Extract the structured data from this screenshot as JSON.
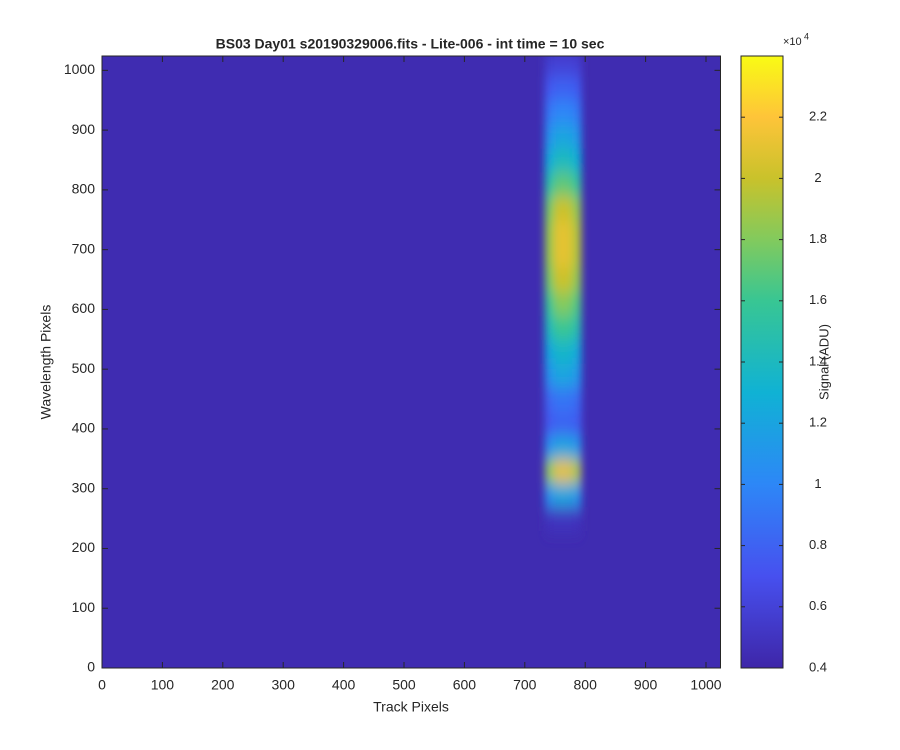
{
  "chart_data": {
    "type": "heatmap",
    "title": "BS03 Day01  s20190329006.fits - Lite-006 - int time = 10 sec",
    "xlabel": "Track Pixels",
    "ylabel": "Wavelength Pixels",
    "xlim": [
      0,
      1024
    ],
    "ylim": [
      0,
      1024
    ],
    "xticks": [
      0,
      100,
      200,
      300,
      400,
      500,
      600,
      700,
      800,
      900,
      1000
    ],
    "yticks": [
      0,
      100,
      200,
      300,
      400,
      500,
      600,
      700,
      800,
      900,
      1000
    ],
    "background": 4400,
    "x": [
      740.5,
      755.5,
      770.5,
      785.5
    ],
    "y": [
      250,
      290,
      330,
      370,
      410,
      450,
      490,
      530,
      570,
      610,
      650,
      690,
      730,
      770,
      810,
      850,
      890,
      930,
      970,
      1010
    ],
    "z": [
      [
        4910,
        5000,
        5000,
        4940
      ],
      [
        10860,
        12000,
        12000,
        11240
      ],
      [
        18510,
        21000,
        21000,
        19340
      ],
      [
        10860,
        12000,
        12000,
        11240
      ],
      [
        7460,
        8000,
        8000,
        7640
      ],
      [
        8310,
        9000,
        9000,
        8540
      ],
      [
        10860,
        12000,
        12000,
        11240
      ],
      [
        12135,
        13500,
        13500,
        12590
      ],
      [
        14260,
        16000,
        16000,
        14840
      ],
      [
        15960,
        18000,
        18000,
        16640
      ],
      [
        17660,
        20000,
        20000,
        18440
      ],
      [
        18510,
        21000,
        21000,
        19340
      ],
      [
        18510,
        21000,
        21000,
        19340
      ],
      [
        17660,
        20000,
        20000,
        18440
      ],
      [
        15110,
        17000,
        17000,
        15740
      ],
      [
        12560,
        14000,
        14000,
        13040
      ],
      [
        10860,
        12000,
        12000,
        11240
      ],
      [
        9160,
        10000,
        10000,
        9440
      ],
      [
        7460,
        8000,
        8000,
        7640
      ],
      [
        5760,
        6000,
        6000,
        5840
      ]
    ],
    "clim": [
      4000,
      24000
    ],
    "cticks": [
      {
        "value": 4000,
        "label": "0.4"
      },
      {
        "value": 6000,
        "label": "0.6"
      },
      {
        "value": 8000,
        "label": "0.8"
      },
      {
        "value": 10000,
        "label": "1"
      },
      {
        "value": 12000,
        "label": "1.2"
      },
      {
        "value": 14000,
        "label": "1.4"
      },
      {
        "value": 16000,
        "label": "1.6"
      },
      {
        "value": 18000,
        "label": "1.8"
      },
      {
        "value": 20000,
        "label": "2"
      },
      {
        "value": 22000,
        "label": "2.2"
      }
    ],
    "colorbar_multiplier": {
      "base": "×10",
      "exponent": "4"
    },
    "colorbar_label": "Signal (ADU)"
  }
}
